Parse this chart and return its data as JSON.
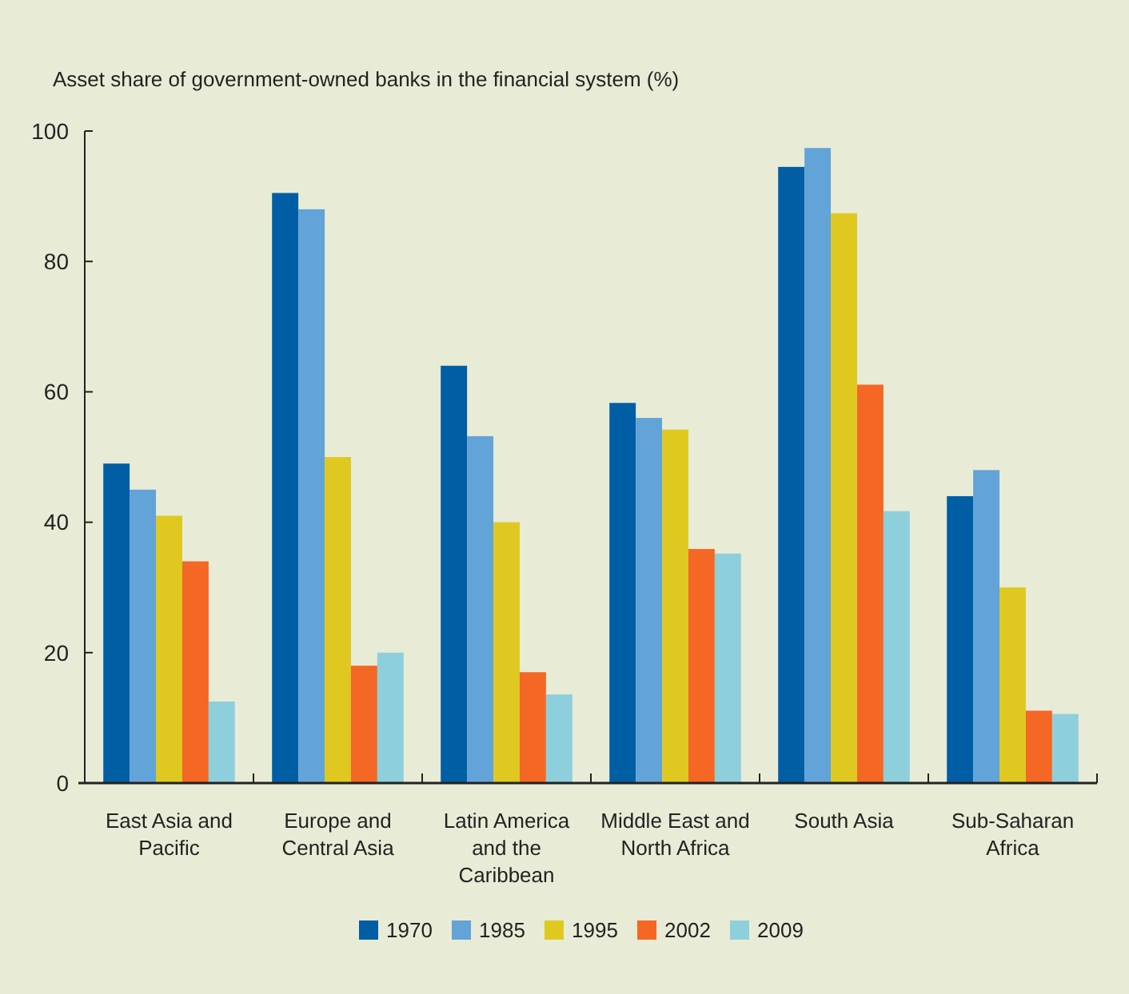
{
  "chart_data": {
    "type": "bar",
    "ylabel": "Asset share of government-owned banks in the financial system (%)",
    "categories": [
      "East Asia and Pacific",
      "Europe and Central Asia",
      "Latin America and the Caribbean",
      "Middle East and North Africa",
      "South Asia",
      "Sub-Saharan Africa"
    ],
    "series": [
      {
        "name": "1970",
        "color": "#005ea5",
        "values": [
          49,
          90.5,
          64,
          58.3,
          94.5,
          44
        ]
      },
      {
        "name": "1985",
        "color": "#62a3d8",
        "values": [
          45,
          88,
          53.2,
          56,
          97.4,
          48
        ]
      },
      {
        "name": "1995",
        "color": "#dfc920",
        "values": [
          41,
          50,
          40,
          54.2,
          87.4,
          30
        ]
      },
      {
        "name": "2002",
        "color": "#f46724",
        "values": [
          34,
          18,
          17,
          35.9,
          61.1,
          11.1
        ]
      },
      {
        "name": "2009",
        "color": "#8ecfdc",
        "values": [
          12.5,
          20,
          13.6,
          35.2,
          41.7,
          10.6
        ]
      }
    ],
    "ylim": [
      0,
      100
    ],
    "yticks": [
      0,
      20,
      40,
      60,
      80,
      100
    ],
    "grid": false,
    "legend": "bottom"
  }
}
